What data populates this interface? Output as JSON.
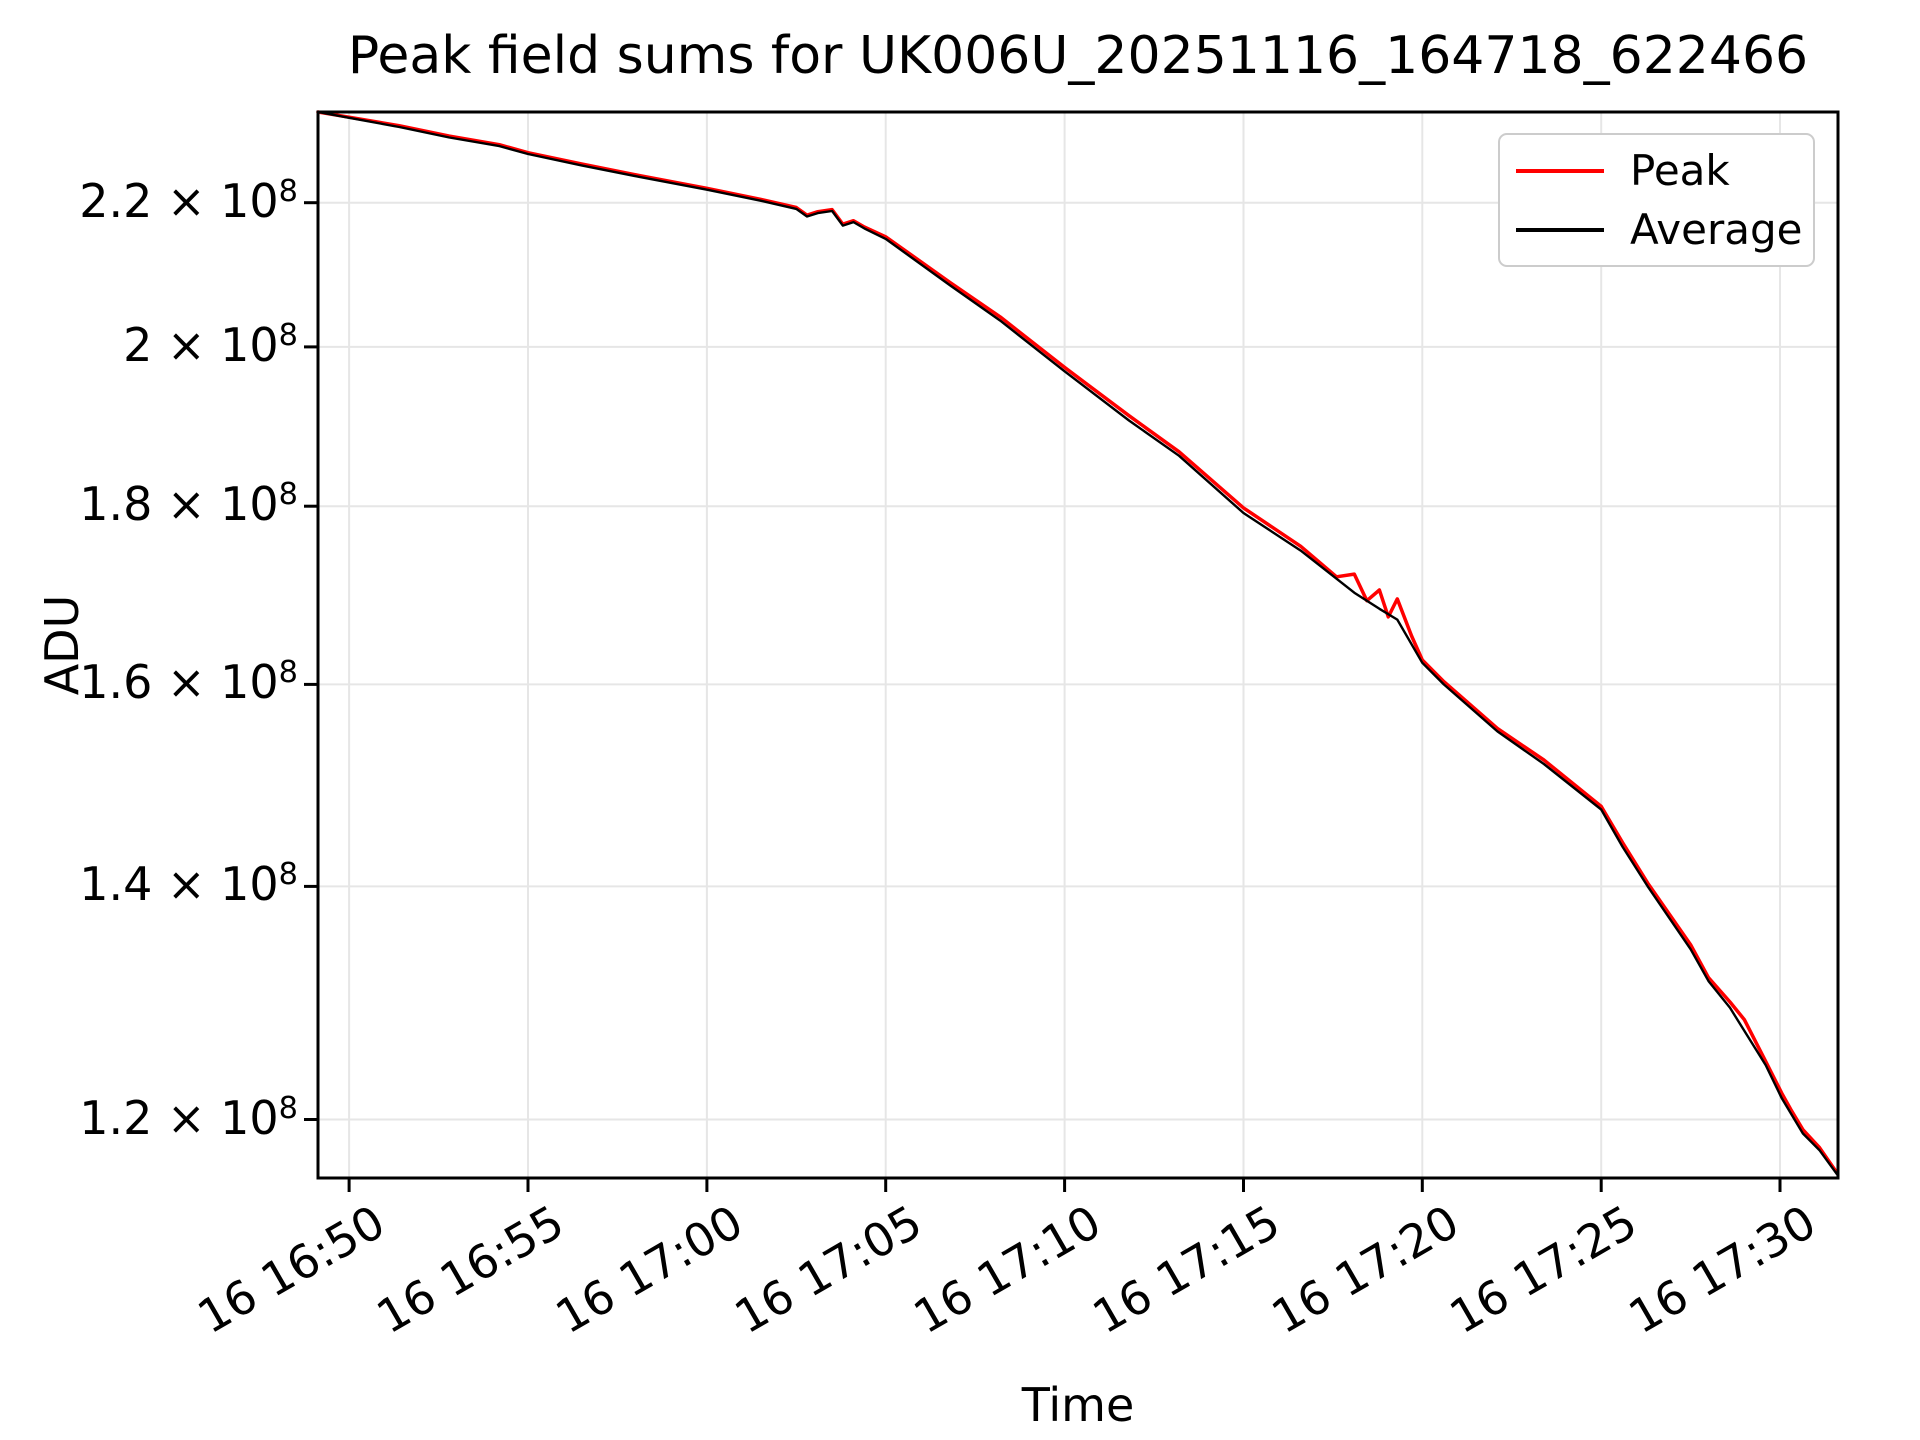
{
  "title": "Peak field sums for UK006U_20251116_164718_622466",
  "xlabel": "Time",
  "ylabel": "ADU",
  "legend": {
    "position": "upper right",
    "entries": [
      {
        "label": "Peak",
        "color": "#ff0000"
      },
      {
        "label": "Average",
        "color": "#000000"
      }
    ]
  },
  "colors": {
    "background": "#ffffff",
    "grid": "#e6e6e6",
    "spine": "#000000",
    "tick": "#000000",
    "peak_line": "#ff0000",
    "average_line": "#000000",
    "legend_border": "#cccccc"
  },
  "chart_data": {
    "type": "line",
    "title": "Peak field sums for UK006U_20251116_164718_622466",
    "xlabel": "Time",
    "ylabel": "ADU",
    "grid": true,
    "legend_position": "upper right",
    "x_axis": {
      "unit": "time of day (day 16), minutes relative to 16:50",
      "tick_minutes": [
        0,
        5,
        10,
        15,
        20,
        25,
        30,
        35,
        40
      ],
      "tick_labels": [
        "16 16:50",
        "16 16:55",
        "16 17:00",
        "16 17:05",
        "16 17:10",
        "16 17:15",
        "16 17:20",
        "16 17:25",
        "16 17:30"
      ],
      "range_minutes": [
        -0.87,
        41.62
      ],
      "tick_rotation_deg": 30
    },
    "y_axis": {
      "scale": "log",
      "range": [
        115450000.0,
        233600000.0
      ],
      "ticks": [
        {
          "value": 220000000.0,
          "base": "2.2 × 10",
          "exp": "8"
        },
        {
          "value": 200000000.0,
          "base": "2 × 10",
          "exp": "8"
        },
        {
          "value": 180000000.0,
          "base": "1.8 × 10",
          "exp": "8"
        },
        {
          "value": 160000000.0,
          "base": "1.6 × 10",
          "exp": "8"
        },
        {
          "value": 140000000.0,
          "base": "1.4 × 10",
          "exp": "8"
        },
        {
          "value": 120000000.0,
          "base": "1.2 × 10",
          "exp": "8"
        }
      ]
    },
    "series": [
      {
        "name": "Peak",
        "color": "#ff0000",
        "line_width": 3.5,
        "points": [
          [
            -0.87,
            233600000.0
          ],
          [
            0,
            232800000.0
          ],
          [
            1.4,
            231500000.0
          ],
          [
            2.8,
            229900000.0
          ],
          [
            4.2,
            228600000.0
          ],
          [
            5.0,
            227400000.0
          ],
          [
            6.5,
            225700000.0
          ],
          [
            8.1,
            224000000.0
          ],
          [
            10.0,
            222100000.0
          ],
          [
            11.5,
            220500000.0
          ],
          [
            12.5,
            219300000.0
          ],
          [
            12.8,
            218200000.0
          ],
          [
            13.1,
            218700000.0
          ],
          [
            13.5,
            219000000.0
          ],
          [
            13.8,
            216900000.0
          ],
          [
            14.1,
            217400000.0
          ],
          [
            14.4,
            216500000.0
          ],
          [
            15.0,
            215100000.0
          ],
          [
            16.8,
            208700000.0
          ],
          [
            18.2,
            204000000.0
          ],
          [
            20.0,
            197300000.0
          ],
          [
            21.8,
            191100000.0
          ],
          [
            23.2,
            186600000.0
          ],
          [
            25.0,
            179800000.0
          ],
          [
            26.6,
            175300000.0
          ],
          [
            27.6,
            171800000.0
          ],
          [
            28.1,
            172100000.0
          ],
          [
            28.45,
            169100000.0
          ],
          [
            28.8,
            170300000.0
          ],
          [
            29.05,
            167300000.0
          ],
          [
            29.3,
            169300000.0
          ],
          [
            29.7,
            165200000.0
          ],
          [
            30.0,
            162600000.0
          ],
          [
            30.6,
            160300000.0
          ],
          [
            32.1,
            155400000.0
          ],
          [
            33.4,
            152200000.0
          ],
          [
            35.0,
            147600000.0
          ],
          [
            35.6,
            144100000.0
          ],
          [
            36.3,
            140300000.0
          ],
          [
            37.5,
            134700000.0
          ],
          [
            38.0,
            131800000.0
          ],
          [
            38.6,
            129700000.0
          ],
          [
            39.0,
            128200000.0
          ],
          [
            39.6,
            124700000.0
          ],
          [
            40.05,
            122100000.0
          ],
          [
            40.3,
            120800000.0
          ],
          [
            40.64,
            119200000.0
          ],
          [
            41.1,
            117800000.0
          ],
          [
            41.6,
            115800000.0
          ]
        ]
      },
      {
        "name": "Average",
        "color": "#000000",
        "line_width": 2.4,
        "points": [
          [
            -0.87,
            233600000.0
          ],
          [
            0,
            232700000.0
          ],
          [
            1.4,
            231300000.0
          ],
          [
            2.8,
            229700000.0
          ],
          [
            4.2,
            228400000.0
          ],
          [
            5.0,
            227200000.0
          ],
          [
            6.5,
            225500000.0
          ],
          [
            8.1,
            223800000.0
          ],
          [
            10.0,
            221900000.0
          ],
          [
            11.5,
            220300000.0
          ],
          [
            12.5,
            219100000.0
          ],
          [
            12.8,
            218000000.0
          ],
          [
            13.1,
            218500000.0
          ],
          [
            13.5,
            218800000.0
          ],
          [
            13.8,
            216700000.0
          ],
          [
            14.1,
            217200000.0
          ],
          [
            14.4,
            216300000.0
          ],
          [
            15.0,
            214800000.0
          ],
          [
            16.8,
            208300000.0
          ],
          [
            18.2,
            203500000.0
          ],
          [
            20.0,
            196800000.0
          ],
          [
            21.8,
            190500000.0
          ],
          [
            23.2,
            186100000.0
          ],
          [
            25.0,
            179200000.0
          ],
          [
            26.6,
            174800000.0
          ],
          [
            28.1,
            170000000.0
          ],
          [
            28.8,
            168200000.0
          ],
          [
            29.3,
            167000000.0
          ],
          [
            30.0,
            162300000.0
          ],
          [
            30.6,
            160000000.0
          ],
          [
            32.1,
            155100000.0
          ],
          [
            33.4,
            151800000.0
          ],
          [
            35.0,
            147300000.0
          ],
          [
            35.6,
            143700000.0
          ],
          [
            36.3,
            140000000.0
          ],
          [
            37.5,
            134300000.0
          ],
          [
            38.0,
            131500000.0
          ],
          [
            38.6,
            129200000.0
          ],
          [
            39.6,
            124400000.0
          ],
          [
            40.05,
            121700000.0
          ],
          [
            40.64,
            118900000.0
          ],
          [
            41.1,
            117600000.0
          ],
          [
            41.6,
            115700000.0
          ]
        ]
      }
    ]
  }
}
